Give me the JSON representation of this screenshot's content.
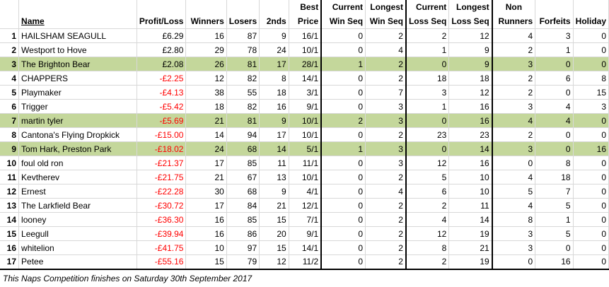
{
  "headers": {
    "name": "Name",
    "profit_loss": "Profit/Loss",
    "winners": "Winners",
    "losers": "Losers",
    "seconds": "2nds",
    "best_price_1": "Best",
    "best_price_2": "Price",
    "cur_win_1": "Current",
    "cur_win_2": "Win Seq",
    "long_win_1": "Longest",
    "long_win_2": "Win Seq",
    "cur_loss_1": "Current",
    "cur_loss_2": "Loss Seq",
    "long_loss_1": "Longest",
    "long_loss_2": "Loss Seq",
    "non_runners_1": "Non",
    "non_runners_2": "Runners",
    "forfeits": "Forfeits",
    "holiday": "Holiday"
  },
  "rows": [
    {
      "rank": "1",
      "name": "HAILSHAM SEAGULL",
      "pl": "£6.29",
      "neg": false,
      "hl": false,
      "winners": "16",
      "losers": "87",
      "seconds": "9",
      "best": "16/1",
      "cur_win": "0",
      "long_win": "2",
      "cur_loss": "2",
      "long_loss": "12",
      "non_runners": "4",
      "forfeits": "3",
      "holiday": "0"
    },
    {
      "rank": "2",
      "name": "Westport to Hove",
      "pl": "£2.80",
      "neg": false,
      "hl": false,
      "winners": "29",
      "losers": "78",
      "seconds": "24",
      "best": "10/1",
      "cur_win": "0",
      "long_win": "4",
      "cur_loss": "1",
      "long_loss": "9",
      "non_runners": "2",
      "forfeits": "1",
      "holiday": "0"
    },
    {
      "rank": "3",
      "name": "The Brighton Bear",
      "pl": "£2.08",
      "neg": false,
      "hl": true,
      "winners": "26",
      "losers": "81",
      "seconds": "17",
      "best": "28/1",
      "cur_win": "1",
      "long_win": "2",
      "cur_loss": "0",
      "long_loss": "9",
      "non_runners": "3",
      "forfeits": "0",
      "holiday": "0"
    },
    {
      "rank": "4",
      "name": "CHAPPERS",
      "pl": "-£2.25",
      "neg": true,
      "hl": false,
      "winners": "12",
      "losers": "82",
      "seconds": "8",
      "best": "14/1",
      "cur_win": "0",
      "long_win": "2",
      "cur_loss": "18",
      "long_loss": "18",
      "non_runners": "2",
      "forfeits": "6",
      "holiday": "8"
    },
    {
      "rank": "5",
      "name": "Playmaker",
      "pl": "-£4.13",
      "neg": true,
      "hl": false,
      "winners": "38",
      "losers": "55",
      "seconds": "18",
      "best": "3/1",
      "cur_win": "0",
      "long_win": "7",
      "cur_loss": "3",
      "long_loss": "12",
      "non_runners": "2",
      "forfeits": "0",
      "holiday": "15"
    },
    {
      "rank": "6",
      "name": "Trigger",
      "pl": "-£5.42",
      "neg": true,
      "hl": false,
      "winners": "18",
      "losers": "82",
      "seconds": "16",
      "best": "9/1",
      "cur_win": "0",
      "long_win": "3",
      "cur_loss": "1",
      "long_loss": "16",
      "non_runners": "3",
      "forfeits": "4",
      "holiday": "3"
    },
    {
      "rank": "7",
      "name": "martin tyler",
      "pl": "-£5.69",
      "neg": true,
      "hl": true,
      "winners": "21",
      "losers": "81",
      "seconds": "9",
      "best": "10/1",
      "cur_win": "2",
      "long_win": "3",
      "cur_loss": "0",
      "long_loss": "16",
      "non_runners": "4",
      "forfeits": "4",
      "holiday": "0"
    },
    {
      "rank": "8",
      "name": "Cantona's Flying Dropkick",
      "pl": "-£15.00",
      "neg": true,
      "hl": false,
      "winners": "14",
      "losers": "94",
      "seconds": "17",
      "best": "10/1",
      "cur_win": "0",
      "long_win": "2",
      "cur_loss": "23",
      "long_loss": "23",
      "non_runners": "2",
      "forfeits": "0",
      "holiday": "0"
    },
    {
      "rank": "9",
      "name": "Tom Hark, Preston Park",
      "pl": "-£18.02",
      "neg": true,
      "hl": true,
      "winners": "24",
      "losers": "68",
      "seconds": "14",
      "best": "5/1",
      "cur_win": "1",
      "long_win": "3",
      "cur_loss": "0",
      "long_loss": "14",
      "non_runners": "3",
      "forfeits": "0",
      "holiday": "16"
    },
    {
      "rank": "10",
      "name": "foul old ron",
      "pl": "-£21.37",
      "neg": true,
      "hl": false,
      "winners": "17",
      "losers": "85",
      "seconds": "11",
      "best": "11/1",
      "cur_win": "0",
      "long_win": "3",
      "cur_loss": "12",
      "long_loss": "16",
      "non_runners": "0",
      "forfeits": "8",
      "holiday": "0"
    },
    {
      "rank": "11",
      "name": "Kevtherev",
      "pl": "-£21.75",
      "neg": true,
      "hl": false,
      "winners": "21",
      "losers": "67",
      "seconds": "13",
      "best": "10/1",
      "cur_win": "0",
      "long_win": "2",
      "cur_loss": "5",
      "long_loss": "10",
      "non_runners": "4",
      "forfeits": "18",
      "holiday": "0"
    },
    {
      "rank": "12",
      "name": "Ernest",
      "pl": "-£22.28",
      "neg": true,
      "hl": false,
      "winners": "30",
      "losers": "68",
      "seconds": "9",
      "best": "4/1",
      "cur_win": "0",
      "long_win": "4",
      "cur_loss": "6",
      "long_loss": "10",
      "non_runners": "5",
      "forfeits": "7",
      "holiday": "0"
    },
    {
      "rank": "13",
      "name": "The Larkfield Bear",
      "pl": "-£30.72",
      "neg": true,
      "hl": false,
      "winners": "17",
      "losers": "84",
      "seconds": "21",
      "best": "12/1",
      "cur_win": "0",
      "long_win": "2",
      "cur_loss": "2",
      "long_loss": "11",
      "non_runners": "4",
      "forfeits": "5",
      "holiday": "0"
    },
    {
      "rank": "14",
      "name": "looney",
      "pl": "-£36.30",
      "neg": true,
      "hl": false,
      "winners": "16",
      "losers": "85",
      "seconds": "15",
      "best": "7/1",
      "cur_win": "0",
      "long_win": "2",
      "cur_loss": "4",
      "long_loss": "14",
      "non_runners": "8",
      "forfeits": "1",
      "holiday": "0"
    },
    {
      "rank": "15",
      "name": "Leegull",
      "pl": "-£39.94",
      "neg": true,
      "hl": false,
      "winners": "16",
      "losers": "86",
      "seconds": "20",
      "best": "9/1",
      "cur_win": "0",
      "long_win": "2",
      "cur_loss": "12",
      "long_loss": "19",
      "non_runners": "3",
      "forfeits": "5",
      "holiday": "0"
    },
    {
      "rank": "16",
      "name": "whitelion",
      "pl": "-£41.75",
      "neg": true,
      "hl": false,
      "winners": "10",
      "losers": "97",
      "seconds": "15",
      "best": "14/1",
      "cur_win": "0",
      "long_win": "2",
      "cur_loss": "8",
      "long_loss": "21",
      "non_runners": "3",
      "forfeits": "0",
      "holiday": "0"
    },
    {
      "rank": "17",
      "name": "Petee",
      "pl": "-£55.16",
      "neg": true,
      "hl": false,
      "winners": "15",
      "losers": "79",
      "seconds": "12",
      "best": "11/2",
      "cur_win": "0",
      "long_win": "2",
      "cur_loss": "2",
      "long_loss": "19",
      "non_runners": "0",
      "forfeits": "16",
      "holiday": "0"
    }
  ],
  "footer": "This Naps Competition finishes on Saturday 30th September 2017",
  "colors": {
    "highlight": "#c4d79b",
    "negative": "#ff0000"
  }
}
